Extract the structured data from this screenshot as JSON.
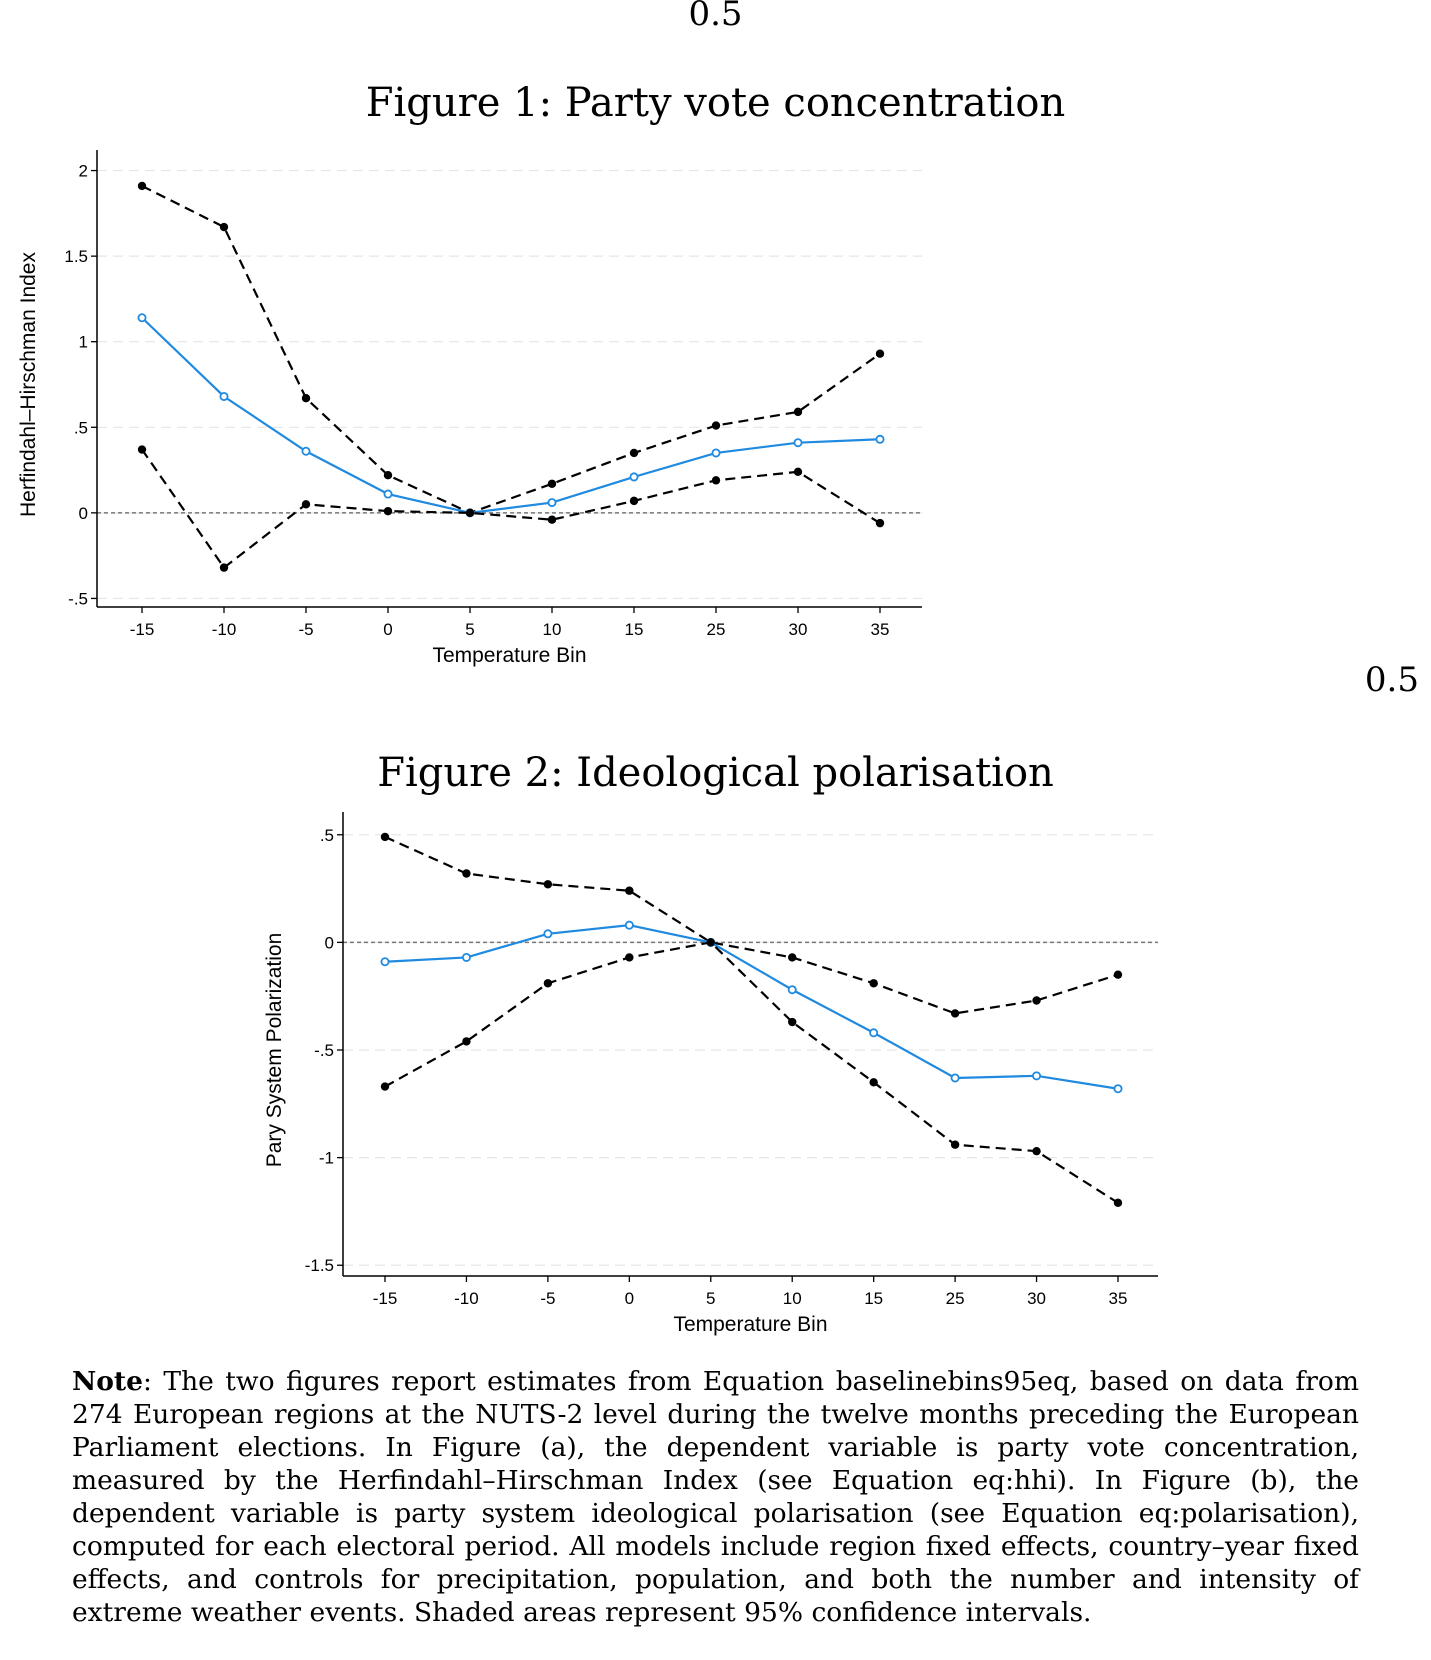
{
  "page": {
    "top_label": "0.5",
    "right_label": "0.5",
    "figure1_caption": "Figure 1: Party vote concentration",
    "figure2_caption": "Figure 2: Ideological polarisation",
    "note_label": "Note",
    "note_text": ": The two figures report estimates from Equation baselinebins95eq, based on data from 274 European regions at the NUTS-2 level during the twelve months preceding the European Parliament elections. In Figure (a), the dependent variable is party vote concentration, measured by the Herfindahl–Hirschman Index (see Equation eq:hhi). In Figure (b), the dependent variable is party system ideological polarisation (see Equation eq:polarisation), computed for each electoral period. All models include region fixed effects, country–year fixed effects, and controls for precipitation, population, and both the number and intensity of extreme weather events. Shaded areas represent 95% confidence intervals."
  },
  "colors": {
    "estimate": "#1f8ae0",
    "ci": "#000000",
    "zero_line": "#777777",
    "grid": "#e6e6e6"
  },
  "chart_data": [
    {
      "type": "line",
      "title": "Figure 1: Party vote concentration",
      "xlabel": "Temperature Bin",
      "ylabel": "Herfindahl–Hirschman Index",
      "categories": [
        "-15",
        "-10",
        "-5",
        "0",
        "5",
        "10",
        "15",
        "25",
        "30",
        "35"
      ],
      "ylim": [
        -0.55,
        2.05
      ],
      "yticks": [
        -0.5,
        0,
        0.5,
        1,
        1.5,
        2
      ],
      "ytick_labels": [
        "-.5",
        "0",
        ".5",
        "1",
        "1.5",
        "2"
      ],
      "grid": true,
      "reference_line": 0,
      "series": [
        {
          "name": "Upper 95% CI",
          "style": "dashed",
          "values": [
            1.91,
            1.67,
            0.67,
            0.22,
            0.0,
            0.17,
            0.35,
            0.51,
            0.59,
            0.93
          ]
        },
        {
          "name": "Estimate",
          "style": "solid",
          "values": [
            1.14,
            0.68,
            0.36,
            0.11,
            0.0,
            0.06,
            0.21,
            0.35,
            0.41,
            0.43
          ]
        },
        {
          "name": "Lower 95% CI",
          "style": "dashed",
          "values": [
            0.37,
            -0.32,
            0.05,
            0.01,
            0.0,
            -0.04,
            0.07,
            0.19,
            0.24,
            -0.06
          ]
        }
      ]
    },
    {
      "type": "line",
      "title": "Figure 2: Ideological polarisation",
      "xlabel": "Temperature Bin",
      "ylabel": "Pary System Polarization",
      "categories": [
        "-15",
        "-10",
        "-5",
        "0",
        "5",
        "10",
        "15",
        "25",
        "30",
        "35"
      ],
      "ylim": [
        -1.55,
        0.55
      ],
      "yticks": [
        -1.5,
        -1,
        -0.5,
        0,
        0.5
      ],
      "ytick_labels": [
        "-1.5",
        "-1",
        "-.5",
        "0",
        ".5"
      ],
      "grid": true,
      "reference_line": 0,
      "series": [
        {
          "name": "Upper 95% CI",
          "style": "dashed",
          "values": [
            0.49,
            0.32,
            0.27,
            0.24,
            0.0,
            -0.07,
            -0.19,
            -0.33,
            -0.27,
            -0.15
          ]
        },
        {
          "name": "Estimate",
          "style": "solid",
          "values": [
            -0.09,
            -0.07,
            0.04,
            0.08,
            0.0,
            -0.22,
            -0.42,
            -0.63,
            -0.62,
            -0.68
          ]
        },
        {
          "name": "Lower 95% CI",
          "style": "dashed",
          "values": [
            -0.67,
            -0.46,
            -0.19,
            -0.07,
            0.0,
            -0.37,
            -0.65,
            -0.94,
            -0.97,
            -1.21
          ]
        }
      ]
    }
  ]
}
